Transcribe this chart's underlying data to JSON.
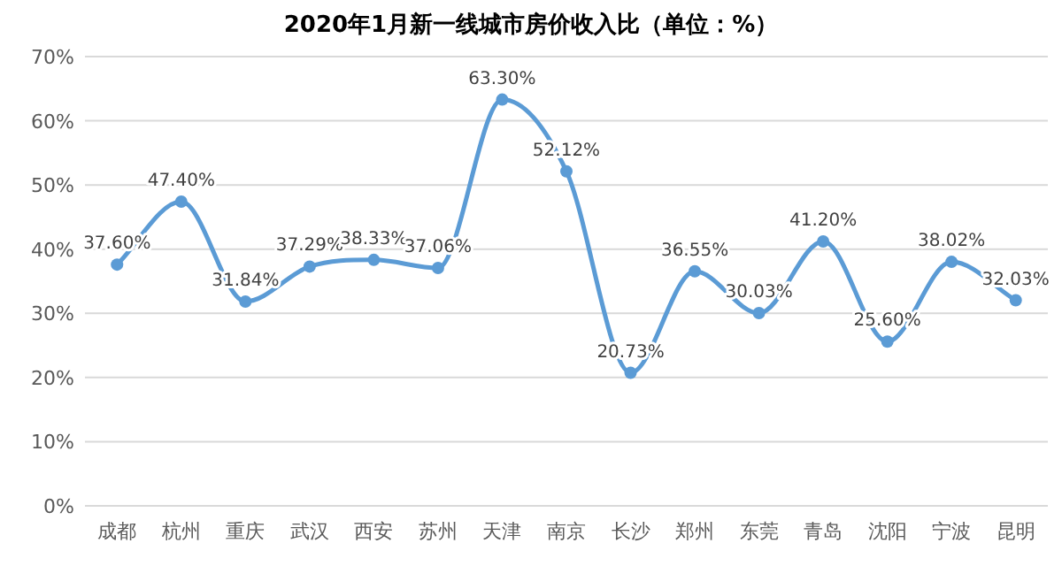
{
  "chart_data": {
    "type": "line",
    "title": "2020年1月新一线城市房价收入比（单位：%）",
    "categories": [
      "成都",
      "杭州",
      "重庆",
      "武汉",
      "西安",
      "苏州",
      "天津",
      "南京",
      "长沙",
      "郑州",
      "东莞",
      "青岛",
      "沈阳",
      "宁波",
      "昆明"
    ],
    "values": [
      37.6,
      47.4,
      31.84,
      37.29,
      38.33,
      37.06,
      63.3,
      52.12,
      20.73,
      36.55,
      30.03,
      41.2,
      25.6,
      38.02,
      32.03
    ],
    "value_labels": [
      "37.60%",
      "47.40%",
      "31.84%",
      "37.29%",
      "38.33%",
      "37.06%",
      "63.30%",
      "52.12%",
      "20.73%",
      "36.55%",
      "30.03%",
      "41.20%",
      "25.60%",
      "38.02%",
      "32.03%"
    ],
    "color": "#5b9bd5",
    "ylim": [
      0,
      70
    ],
    "yticks": [
      {
        "value": 0,
        "label": "0%"
      },
      {
        "value": 10,
        "label": "10%"
      },
      {
        "value": 20,
        "label": "20%"
      },
      {
        "value": 30,
        "label": "30%"
      },
      {
        "value": 40,
        "label": "40%"
      },
      {
        "value": 50,
        "label": "50%"
      },
      {
        "value": 60,
        "label": "60%"
      },
      {
        "value": 70,
        "label": "70%"
      }
    ],
    "grid": "y",
    "marker": "circle",
    "line_style": "solid"
  }
}
